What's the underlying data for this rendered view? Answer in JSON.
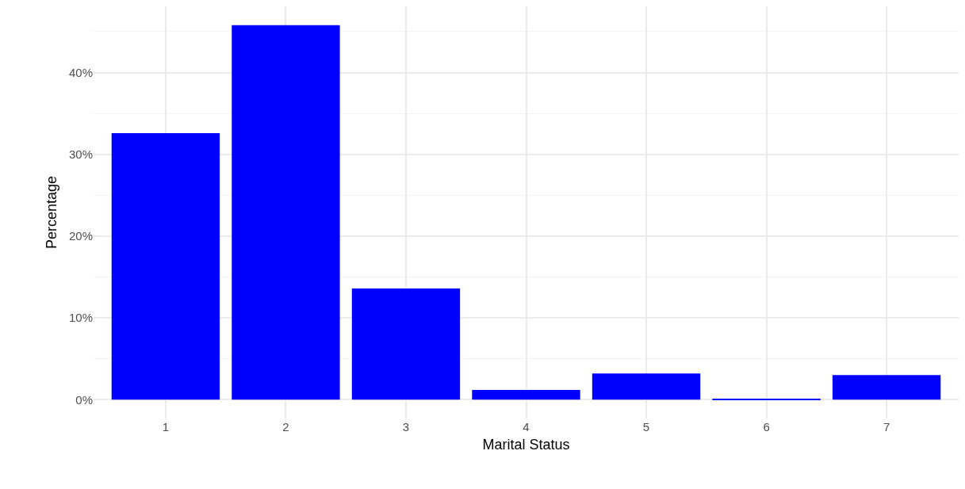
{
  "chart_data": {
    "type": "bar",
    "xlabel": "Marital Status",
    "ylabel": "Percentage",
    "categories": [
      "1",
      "2",
      "3",
      "4",
      "5",
      "6",
      "7"
    ],
    "values": [
      32.6,
      45.8,
      13.6,
      1.2,
      3.2,
      0.1,
      3.0
    ],
    "color": "#0000ff",
    "ylim": [
      -2.3,
      48.1
    ],
    "yticks": [
      {
        "value": 0,
        "label": "0%"
      },
      {
        "value": 10,
        "label": "10%"
      },
      {
        "value": 20,
        "label": "20%"
      },
      {
        "value": 30,
        "label": "30%"
      },
      {
        "value": 40,
        "label": "40%"
      }
    ],
    "grid": true
  }
}
